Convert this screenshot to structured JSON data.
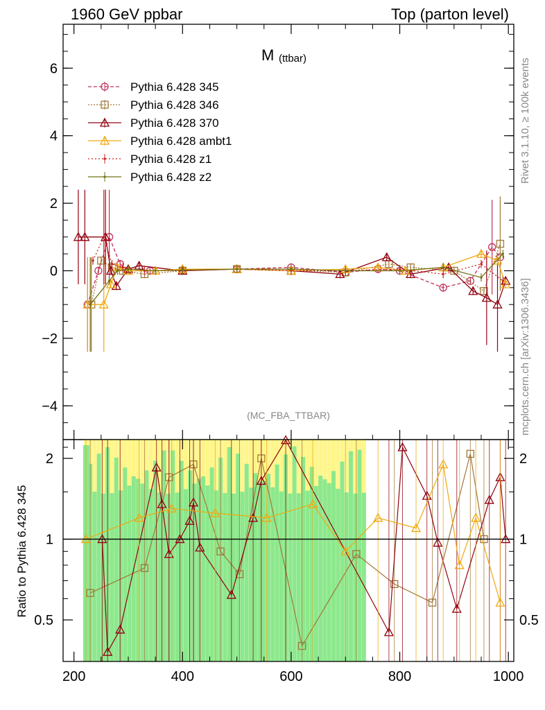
{
  "header": {
    "left": "1960 GeV ppbar",
    "right": "Top (parton level)"
  },
  "side_labels": {
    "rivet": "Rivet 3.1.10, ≥ 100k events",
    "mcplots": "mcplots.cern.ch [arXiv:1306.3436]"
  },
  "chart_data": [
    {
      "type": "line",
      "title": "M",
      "title_sub": "(ttbar)",
      "analysis": "(MC_FBA_TTBAR)",
      "xlim": [
        180,
        1010
      ],
      "ylim": [
        -5,
        7.3
      ],
      "yticks": [
        -4,
        -2,
        0,
        2,
        4,
        6
      ],
      "legend_position": "top-left",
      "series": [
        {
          "name": "Pythia 6.428 345",
          "color": "#c0305a",
          "marker": "circle",
          "dash": "5,3",
          "x": [
            225,
            245,
            265,
            285,
            300,
            340,
            400,
            500,
            600,
            700,
            760,
            800,
            880,
            930,
            970,
            985
          ],
          "y": [
            -1.0,
            0.0,
            1.0,
            0.2,
            0.0,
            0.0,
            0.02,
            0.05,
            0.1,
            -0.05,
            0.05,
            0.0,
            -0.5,
            -0.3,
            0.7,
            0.4
          ]
        },
        {
          "name": "Pythia 6.428 346",
          "color": "#a07838",
          "marker": "square",
          "dash": "2,2",
          "x": [
            232,
            250,
            270,
            290,
            330,
            400,
            500,
            600,
            700,
            780,
            820,
            900,
            955,
            985
          ],
          "y": [
            -1.0,
            0.3,
            0.1,
            0.0,
            -0.1,
            0.0,
            0.05,
            0.0,
            -0.05,
            0.2,
            0.1,
            0.0,
            -0.6,
            0.8
          ]
        },
        {
          "name": "Pythia 6.428 370",
          "color": "#900010",
          "marker": "triangle",
          "dash": "",
          "x": [
            208,
            220,
            258,
            268,
            278,
            300,
            320,
            400,
            500,
            600,
            690,
            776,
            820,
            890,
            935,
            960,
            980,
            995
          ],
          "y": [
            1.0,
            1.0,
            1.0,
            0.0,
            -0.45,
            0.05,
            0.15,
            0.0,
            0.05,
            0.0,
            -0.1,
            0.4,
            -0.1,
            0.1,
            -0.6,
            -0.8,
            -1.0,
            -0.3
          ]
        },
        {
          "name": "Pythia 6.428 ambt1",
          "color": "#f0a810",
          "marker": "triangle",
          "dash": "",
          "x": [
            225,
            255,
            268,
            280,
            300,
            350,
            400,
            500,
            600,
            700,
            760,
            810,
            880,
            950,
            980,
            995
          ],
          "y": [
            -1.0,
            -1.0,
            -0.4,
            0.1,
            0.0,
            0.0,
            0.05,
            0.05,
            0.0,
            0.05,
            0.1,
            0.0,
            0.1,
            0.5,
            0.3,
            -0.4
          ]
        },
        {
          "name": "Pythia 6.428 z1",
          "color": "#c82020",
          "marker": "dot",
          "dash": "2,3",
          "x": [
            235,
            255,
            270,
            290,
            330,
            400,
            500,
            600,
            700,
            800,
            880,
            950,
            990
          ],
          "y": [
            0.3,
            1.0,
            0.2,
            0.1,
            0.0,
            0.0,
            0.05,
            0.0,
            0.0,
            0.05,
            -0.1,
            0.2,
            -0.3
          ]
        },
        {
          "name": "Pythia 6.428 z2",
          "color": "#707010",
          "marker": "dot",
          "dash": "",
          "x": [
            230,
            265,
            280,
            300,
            350,
            400,
            500,
            600,
            700,
            800,
            880,
            950,
            990
          ],
          "y": [
            -1.0,
            -0.3,
            0.0,
            0.05,
            0.0,
            0.02,
            0.05,
            0.05,
            0.0,
            0.0,
            0.1,
            -0.2,
            0.5
          ]
        }
      ]
    },
    {
      "type": "line",
      "ylabel": "Ratio to Pythia 6.428 345",
      "xlim": [
        180,
        1010
      ],
      "ylim": [
        0.35,
        2.35
      ],
      "yticks": [
        0.5,
        1,
        2
      ],
      "xticks": [
        200,
        400,
        600,
        800,
        1000
      ],
      "reference": 1,
      "bands": [
        {
          "name": "yellow",
          "color": "#fff68a"
        },
        {
          "name": "green",
          "color": "#8ce88c"
        }
      ],
      "series": [
        {
          "name": "Pythia 6.428 346",
          "color": "#a07838",
          "marker": "square",
          "x": [
            230,
            330,
            375,
            420,
            470,
            505,
            545,
            620,
            720,
            790,
            860,
            930,
            955
          ],
          "y": [
            0.63,
            0.78,
            1.7,
            1.9,
            0.9,
            0.74,
            2.0,
            0.4,
            0.88,
            0.68,
            0.58,
            2.08,
            1.0
          ]
        },
        {
          "name": "Pythia 6.428 370",
          "color": "#900010",
          "marker": "triangle",
          "x": [
            252,
            262,
            285,
            352,
            362,
            375,
            395,
            413,
            420,
            432,
            490,
            530,
            545,
            590,
            780,
            805,
            850,
            870,
            905,
            965,
            985,
            995
          ],
          "y": [
            1.0,
            0.38,
            0.46,
            1.85,
            1.35,
            0.88,
            1.0,
            1.17,
            1.37,
            0.93,
            0.62,
            1.2,
            1.65,
            2.35,
            0.45,
            2.2,
            1.45,
            0.97,
            0.55,
            1.4,
            1.7,
            1.0
          ]
        },
        {
          "name": "Pythia 6.428 ambt1",
          "color": "#f0a810",
          "marker": "triangle",
          "x": [
            222,
            320,
            380,
            460,
            555,
            640,
            700,
            760,
            830,
            880,
            910,
            940,
            985
          ],
          "y": [
            1.0,
            1.2,
            1.3,
            1.25,
            1.2,
            1.35,
            0.9,
            1.2,
            1.1,
            1.9,
            0.8,
            1.2,
            0.58
          ]
        }
      ]
    }
  ]
}
